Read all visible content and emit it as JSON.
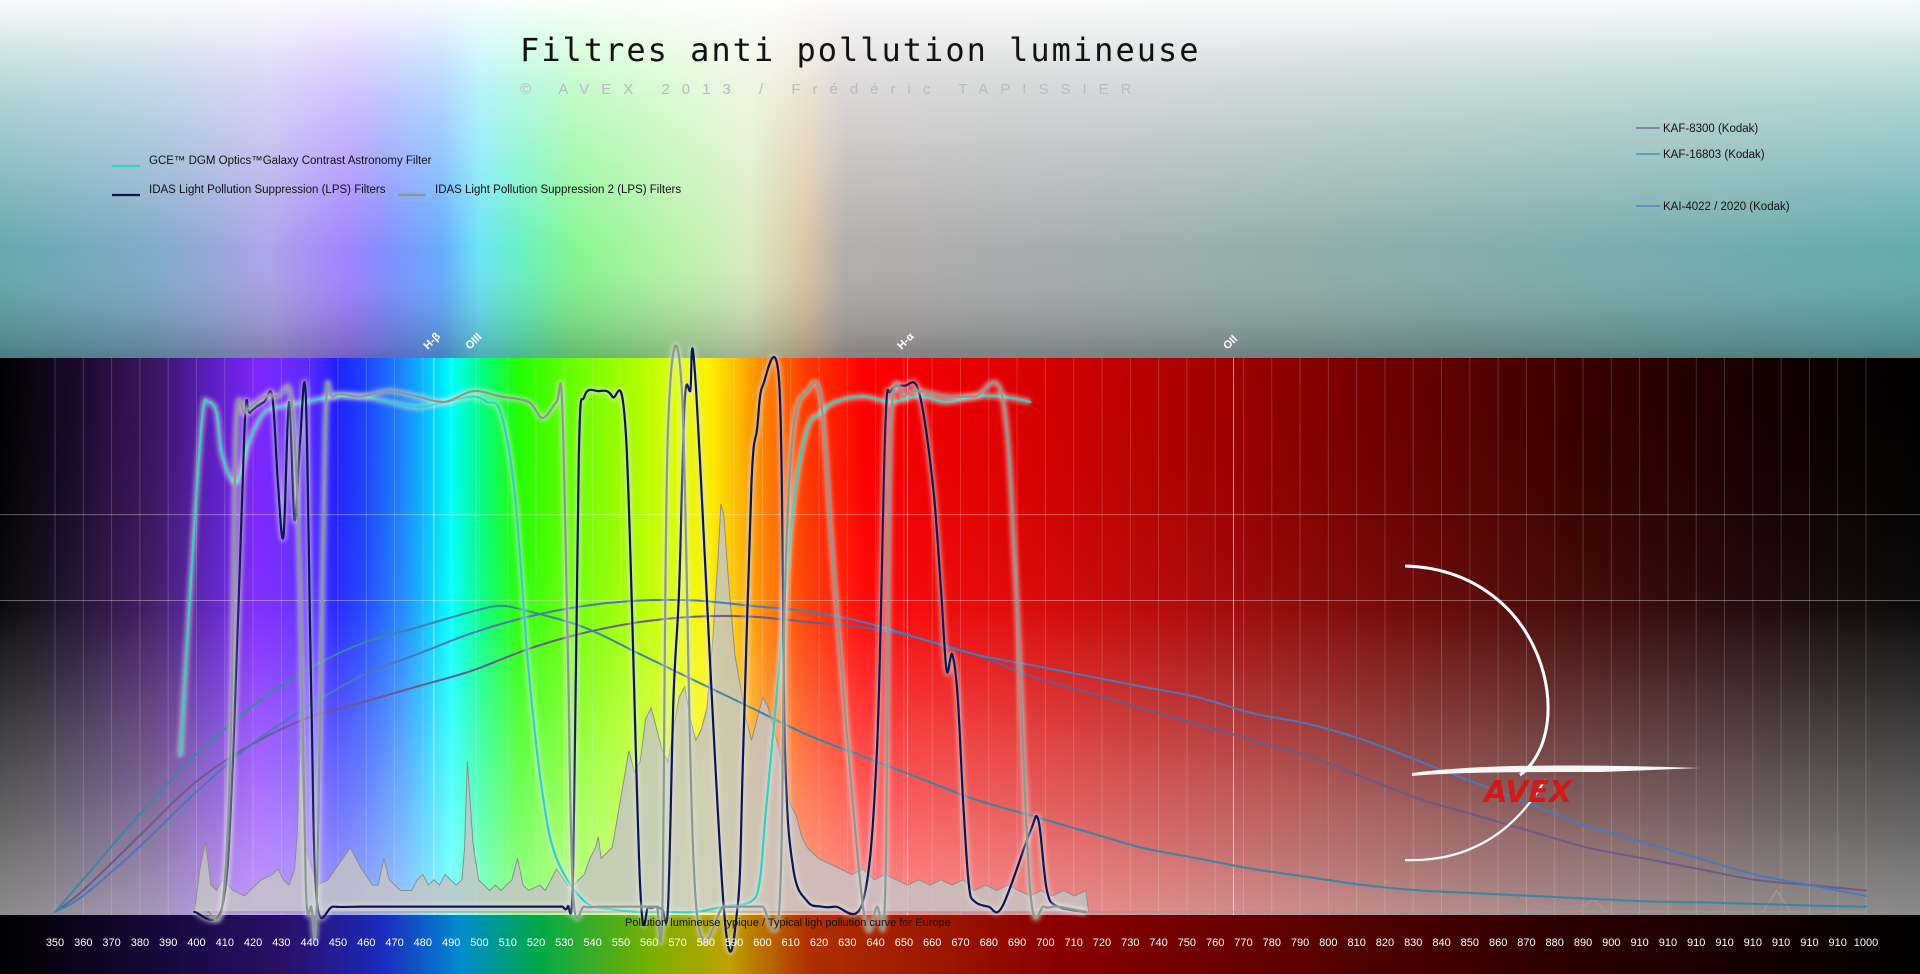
{
  "chart_data": {
    "type": "line",
    "title": "Filtres anti pollution lumineuse",
    "subtitle": "© AVEX 2013   /   Frédéric TAPISSIER",
    "xlabel": "",
    "ylabel": "",
    "xlim": [
      350,
      1000
    ],
    "ylim": [
      0,
      100
    ],
    "grid": true,
    "x_tick_labels": [
      "350",
      "360",
      "370",
      "380",
      "390",
      "400",
      "410",
      "420",
      "430",
      "440",
      "450",
      "460",
      "470",
      "480",
      "490",
      "500",
      "510",
      "520",
      "530",
      "540",
      "550",
      "560",
      "570",
      "580",
      "590",
      "600",
      "610",
      "620",
      "630",
      "640",
      "650",
      "660",
      "670",
      "680",
      "690",
      "700",
      "710",
      "720",
      "730",
      "740",
      "750",
      "760",
      "770",
      "780",
      "790",
      "800",
      "810",
      "820",
      "830",
      "840",
      "850",
      "860",
      "870",
      "880",
      "890",
      "900",
      "910",
      "910",
      "910",
      "910",
      "910",
      "910",
      "910",
      "910",
      "1000"
    ],
    "legend_left": [
      {
        "name": "GCE™ DGM Optics™Galaxy Contrast Astronomy Filter",
        "color": "#2ed3c0"
      },
      {
        "name": "IDAS Light Pollution Suppression (LPS) Filters",
        "color": "#0b1550"
      },
      {
        "name": "IDAS Light Pollution Suppression 2 (LPS) Filters",
        "color": "#8a9a8e"
      }
    ],
    "legend_right": [
      {
        "name": "KAF-8300 (Kodak)",
        "color": "#6b5a8a"
      },
      {
        "name": "KAF-16803 (Kodak)",
        "color": "#3a86a3"
      },
      {
        "name": "KAI-4022 / 2020 (Kodak)",
        "color": "#4a78b8"
      }
    ],
    "line_labels": [
      {
        "text": "H-β",
        "x": 486
      },
      {
        "text": "OIII",
        "x": 501
      },
      {
        "text": "H-α",
        "x": 656
      },
      {
        "text": "OII",
        "x": 773
      }
    ],
    "pollution_label": "Pollution lumineuse typique / Typical ligh pollution curve for Europe",
    "logo_text": "AVEX",
    "series": [
      {
        "name": "GCE™ DGM Optics™Galaxy Contrast Astronomy Filter",
        "color": "#2ed3c0",
        "x": [
          395,
          400,
          403,
          405,
          408,
          410,
          415,
          420,
          425,
          430,
          440,
          450,
          460,
          470,
          480,
          490,
          500,
          505,
          510,
          515,
          520,
          525,
          530,
          540,
          550,
          560,
          570,
          580,
          590,
          600,
          603,
          605,
          610,
          615,
          620,
          625,
          630,
          640,
          650,
          660,
          670,
          680,
          690,
          700
        ],
        "y": [
          29,
          72,
          93,
          95,
          93,
          85,
          80,
          88,
          93,
          94,
          95,
          96,
          96,
          95,
          94,
          95,
          96,
          95,
          93,
          78,
          45,
          22,
          10,
          2,
          0.5,
          0,
          0,
          0,
          1,
          2,
          6,
          18,
          46,
          76,
          90,
          93,
          95,
          96,
          95,
          96,
          95,
          96,
          96,
          95
        ]
      },
      {
        "name": "IDAS Light Pollution Suppression (LPS) Filters",
        "color": "#0b1550",
        "x": [
          400,
          410,
          414,
          418,
          420,
          425,
          428,
          430,
          432,
          434,
          436,
          438,
          440,
          442,
          444,
          450,
          460,
          470,
          480,
          490,
          500,
          510,
          520,
          525,
          530,
          532,
          534,
          536,
          538,
          540,
          545,
          550,
          555,
          560,
          563,
          566,
          568,
          570,
          572,
          574,
          576,
          578,
          580,
          590,
          595,
          597,
          600,
          602,
          604,
          610,
          612,
          615,
          620,
          625,
          630,
          640,
          645,
          648,
          650,
          655,
          660,
          665,
          668,
          670,
          672,
          674,
          676,
          678,
          680,
          685,
          690,
          700,
          703,
          706,
          710,
          720
        ],
        "y": [
          0,
          1,
          30,
          90,
          93,
          95,
          96,
          80,
          70,
          95,
          73,
          88,
          96,
          40,
          2,
          1,
          1,
          1,
          1,
          1,
          1,
          1,
          1,
          1,
          1,
          1,
          1,
          8,
          85,
          96,
          97,
          96,
          88,
          5,
          1,
          1,
          0.5,
          1,
          40,
          60,
          95,
          97,
          98,
          1,
          1,
          30,
          80,
          90,
          98,
          98,
          30,
          8,
          2,
          1,
          1,
          2,
          30,
          90,
          97,
          98,
          97,
          80,
          60,
          45,
          48,
          40,
          20,
          5,
          2,
          1,
          1,
          15,
          17,
          4,
          1,
          0
        ]
      },
      {
        "name": "IDAS Light Pollution Suppression 2 (LPS) Filters",
        "color": "#8a9a8e",
        "x": [
          405,
          410,
          413,
          415,
          418,
          420,
          425,
          430,
          435,
          438,
          440,
          442,
          444,
          447,
          450,
          460,
          470,
          480,
          490,
          500,
          510,
          520,
          525,
          530,
          532,
          534,
          536,
          540,
          545,
          550,
          555,
          560,
          563,
          566,
          568,
          570,
          575,
          580,
          590,
          595,
          600,
          602,
          604,
          610,
          612,
          615,
          620,
          625,
          630,
          640,
          645,
          648,
          650,
          655,
          660,
          670,
          680,
          690,
          695,
          700,
          705,
          710,
          720
        ],
        "y": [
          0,
          1,
          30,
          90,
          93,
          94,
          96,
          96,
          95,
          60,
          5,
          1,
          2,
          90,
          96,
          96,
          97,
          96,
          95,
          97,
          96,
          95,
          92,
          95,
          95,
          50,
          3,
          1,
          1,
          1,
          1,
          1,
          1,
          1,
          1,
          90,
          97,
          2,
          1,
          1,
          1,
          1,
          1,
          1,
          60,
          90,
          97,
          95,
          60,
          1,
          1,
          4,
          90,
          96,
          97,
          96,
          96,
          96,
          60,
          4,
          1,
          1,
          0
        ]
      },
      {
        "name": "KAF-8300 (Kodak)",
        "color": "#6b5a8a",
        "x": [
          350,
          360,
          380,
          400,
          420,
          440,
          460,
          480,
          500,
          520,
          540,
          560,
          580,
          600,
          620,
          640,
          660,
          680,
          700,
          720,
          740,
          760,
          780,
          800,
          820,
          840,
          860,
          880,
          900,
          920,
          940,
          960,
          980,
          1000
        ],
        "y": [
          0,
          4,
          14,
          24,
          31,
          36,
          39,
          42,
          45,
          49,
          52,
          54,
          55,
          55,
          54,
          53,
          51,
          48,
          44,
          41,
          38,
          35,
          32,
          29,
          25,
          21,
          18,
          15,
          12,
          10,
          8,
          6,
          5,
          4
        ]
      },
      {
        "name": "KAF-16803 (Kodak)",
        "color": "#3a86a3",
        "x": [
          350,
          360,
          380,
          400,
          420,
          440,
          460,
          480,
          500,
          510,
          520,
          540,
          560,
          580,
          600,
          620,
          640,
          660,
          680,
          700,
          720,
          740,
          760,
          780,
          800,
          820,
          840,
          860,
          880,
          900,
          920,
          940,
          960,
          980,
          1000
        ],
        "y": [
          0,
          6,
          18,
          29,
          38,
          45,
          50,
          53,
          56,
          57,
          56,
          53,
          48,
          43,
          38,
          33,
          29,
          25,
          21,
          18,
          15,
          12,
          10,
          8,
          6.5,
          5,
          4,
          3.5,
          3,
          2.5,
          2,
          1.8,
          1.5,
          1.2,
          1
        ]
      },
      {
        "name": "KAI-4022 / 2020 (Kodak)",
        "color": "#4a78b8",
        "x": [
          350,
          360,
          380,
          400,
          420,
          440,
          460,
          480,
          500,
          520,
          540,
          560,
          580,
          600,
          620,
          640,
          660,
          680,
          700,
          720,
          740,
          760,
          780,
          800,
          820,
          840,
          860,
          880,
          900,
          920,
          940,
          960,
          980,
          1000
        ],
        "y": [
          0,
          3,
          12,
          22,
          31,
          38,
          44,
          48,
          52,
          55,
          57,
          58,
          58,
          57,
          56,
          54,
          51,
          48,
          46,
          44,
          42,
          40,
          37,
          35,
          32,
          28,
          24,
          20,
          16,
          13,
          10,
          7,
          5,
          3
        ]
      }
    ],
    "pollution": {
      "name": "Pollution lumineuse typique / Typical ligh pollution curve for Europe",
      "x": [
        400,
        402,
        404,
        406,
        408,
        410,
        414,
        418,
        420,
        424,
        428,
        430,
        432,
        434,
        436,
        437,
        438,
        440,
        444,
        448,
        452,
        456,
        460,
        464,
        466,
        468,
        470,
        474,
        478,
        480,
        482,
        484,
        486,
        488,
        490,
        492,
        494,
        496,
        497,
        498,
        500,
        502,
        504,
        506,
        508,
        510,
        514,
        516,
        518,
        520,
        524,
        526,
        528,
        530,
        534,
        536,
        540,
        542,
        544,
        545,
        546,
        548,
        550,
        552,
        554,
        556,
        558,
        560,
        562,
        564,
        566,
        568,
        570,
        572,
        574,
        576,
        578,
        580,
        582,
        584,
        586,
        588,
        589,
        590,
        592,
        594,
        596,
        598,
        600,
        602,
        604,
        606,
        608,
        610,
        612,
        614,
        616,
        618,
        620,
        624,
        628,
        632,
        636,
        640,
        644,
        648,
        652,
        656,
        660,
        664,
        668,
        672,
        676,
        680,
        684,
        688,
        692,
        696,
        700,
        704,
        708,
        712,
        716,
        720,
        721
      ],
      "y": [
        0,
        8,
        13,
        5,
        4,
        6,
        4,
        3,
        4,
        6,
        7,
        8,
        6,
        5,
        8,
        15,
        32,
        12,
        5,
        6,
        9,
        12,
        8,
        5,
        5,
        10,
        6,
        4,
        4,
        6,
        7,
        5,
        6,
        5,
        7,
        6,
        5,
        6,
        12,
        28,
        13,
        6,
        5,
        4,
        5,
        4,
        6,
        10,
        5,
        4,
        5,
        4,
        6,
        8,
        5,
        5,
        7,
        10,
        12,
        14,
        10,
        11,
        12,
        18,
        24,
        30,
        26,
        28,
        36,
        38,
        34,
        30,
        28,
        34,
        40,
        42,
        36,
        32,
        34,
        38,
        50,
        66,
        76,
        74,
        60,
        48,
        42,
        36,
        32,
        36,
        40,
        38,
        34,
        30,
        24,
        20,
        18,
        14,
        12,
        10,
        9,
        8,
        7,
        8,
        6,
        7,
        6,
        5,
        6,
        5,
        6,
        5,
        6,
        4,
        5,
        4,
        5,
        4,
        3,
        4,
        3,
        4,
        3,
        4,
        0
      ]
    },
    "pollution_extra_peaks": [
      {
        "x": 902,
        "height": 2.5
      },
      {
        "x": 968,
        "height": 4.0
      }
    ]
  }
}
